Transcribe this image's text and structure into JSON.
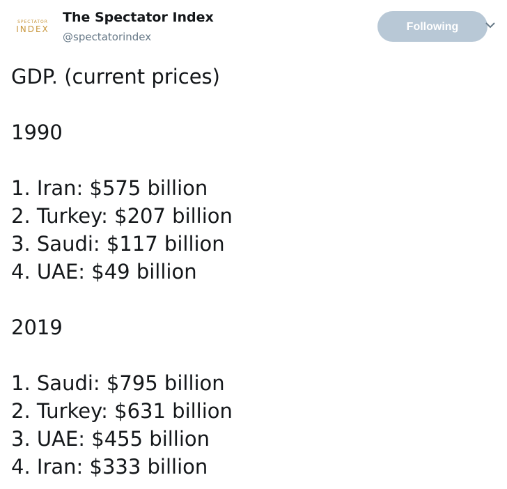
{
  "header": {
    "logo_top": "SPECTATOR",
    "logo_bottom": "INDEX",
    "name": "The Spectator Index",
    "handle": "@spectatorindex",
    "button": "Following"
  },
  "tweet": {
    "title": "GDP. (current prices)",
    "sections": [
      {
        "year": "1990",
        "items": [
          "1. Iran: $575 billion",
          "2. Turkey: $207 billion",
          "3. Saudi: $117 billion",
          "4. UAE: $49 billion"
        ]
      },
      {
        "year": "2019",
        "items": [
          "1. Saudi: $795 billion",
          "2. Turkey: $631 billion",
          "3. UAE: $455 billion",
          "4. Iran: $333 billion"
        ]
      }
    ]
  }
}
